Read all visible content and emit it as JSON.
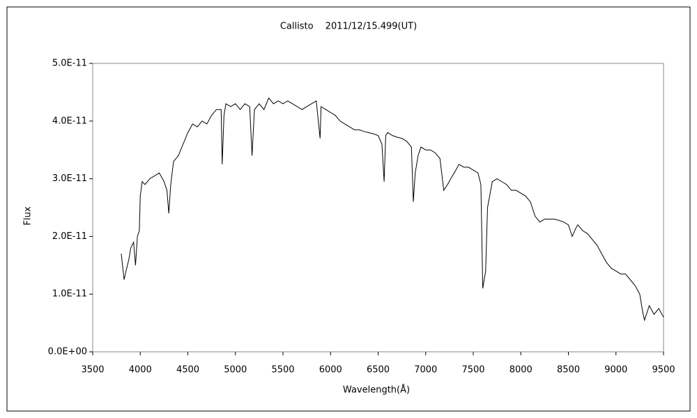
{
  "chart_data": {
    "type": "line",
    "title": "Callisto　 2011/12/15.499(UT)",
    "xlabel": "Wavelength(Å)",
    "ylabel": "Flux",
    "color": "#000000",
    "xlim": [
      3500,
      9500
    ],
    "xticks": [
      3500,
      4000,
      4500,
      5000,
      5500,
      6000,
      6500,
      7000,
      7500,
      8000,
      8500,
      9000,
      9500
    ],
    "ylim": [
      0,
      5e-11
    ],
    "yticks": [
      {
        "value": 0,
        "label": "0.0E+00"
      },
      {
        "value": 1e-11,
        "label": "1.0E-11"
      },
      {
        "value": 2e-11,
        "label": "2.0E-11"
      },
      {
        "value": 3e-11,
        "label": "3.0E-11"
      },
      {
        "value": 4e-11,
        "label": "4.0E-11"
      },
      {
        "value": 5e-11,
        "label": "5.0E-11"
      }
    ],
    "grid": false,
    "x": [
      3800,
      3830,
      3850,
      3880,
      3900,
      3930,
      3950,
      3970,
      3990,
      4000,
      4020,
      4050,
      4100,
      4150,
      4200,
      4250,
      4280,
      4300,
      4320,
      4350,
      4400,
      4450,
      4500,
      4550,
      4600,
      4650,
      4700,
      4750,
      4800,
      4850,
      4861,
      4880,
      4900,
      4950,
      5000,
      5050,
      5100,
      5150,
      5175,
      5200,
      5250,
      5300,
      5350,
      5400,
      5450,
      5500,
      5550,
      5600,
      5650,
      5700,
      5750,
      5800,
      5850,
      5890,
      5900,
      5950,
      6000,
      6050,
      6100,
      6150,
      6200,
      6250,
      6300,
      6350,
      6400,
      6450,
      6500,
      6540,
      6563,
      6580,
      6600,
      6650,
      6700,
      6750,
      6800,
      6850,
      6870,
      6890,
      6920,
      6950,
      7000,
      7050,
      7100,
      7150,
      7190,
      7230,
      7280,
      7300,
      7350,
      7400,
      7450,
      7500,
      7550,
      7580,
      7600,
      7630,
      7650,
      7700,
      7750,
      7800,
      7850,
      7900,
      7950,
      8000,
      8050,
      8100,
      8150,
      8200,
      8250,
      8300,
      8350,
      8400,
      8450,
      8500,
      8540,
      8580,
      8600,
      8650,
      8700,
      8750,
      8800,
      8850,
      8900,
      8950,
      9000,
      9050,
      9100,
      9150,
      9200,
      9250,
      9280,
      9300,
      9350,
      9400,
      9450,
      9500
    ],
    "values": [
      1.7e-11,
      1.25e-11,
      1.4e-11,
      1.6e-11,
      1.8e-11,
      1.9e-11,
      1.5e-11,
      2e-11,
      2.1e-11,
      2.7e-11,
      2.95e-11,
      2.9e-11,
      3e-11,
      3.05e-11,
      3.1e-11,
      2.95e-11,
      2.8e-11,
      2.4e-11,
      2.9e-11,
      3.3e-11,
      3.4e-11,
      3.6e-11,
      3.8e-11,
      3.95e-11,
      3.9e-11,
      4e-11,
      3.95e-11,
      4.1e-11,
      4.2e-11,
      4.2e-11,
      3.25e-11,
      4.1e-11,
      4.3e-11,
      4.25e-11,
      4.3e-11,
      4.2e-11,
      4.3e-11,
      4.25e-11,
      3.4e-11,
      4.2e-11,
      4.3e-11,
      4.2e-11,
      4.4e-11,
      4.3e-11,
      4.35e-11,
      4.3e-11,
      4.35e-11,
      4.3e-11,
      4.25e-11,
      4.2e-11,
      4.25e-11,
      4.3e-11,
      4.35e-11,
      3.7e-11,
      4.25e-11,
      4.2e-11,
      4.15e-11,
      4.1e-11,
      4e-11,
      3.95e-11,
      3.9e-11,
      3.85e-11,
      3.85e-11,
      3.82e-11,
      3.8e-11,
      3.78e-11,
      3.75e-11,
      3.6e-11,
      2.95e-11,
      3.75e-11,
      3.8e-11,
      3.75e-11,
      3.72e-11,
      3.7e-11,
      3.65e-11,
      3.55e-11,
      2.6e-11,
      3.1e-11,
      3.4e-11,
      3.55e-11,
      3.5e-11,
      3.5e-11,
      3.45e-11,
      3.35e-11,
      2.8e-11,
      2.9e-11,
      3.05e-11,
      3.1e-11,
      3.25e-11,
      3.2e-11,
      3.2e-11,
      3.15e-11,
      3.1e-11,
      2.9e-11,
      1.1e-11,
      1.4e-11,
      2.5e-11,
      2.95e-11,
      3e-11,
      2.95e-11,
      2.9e-11,
      2.8e-11,
      2.8e-11,
      2.75e-11,
      2.7e-11,
      2.6e-11,
      2.35e-11,
      2.25e-11,
      2.3e-11,
      2.3e-11,
      2.3e-11,
      2.28e-11,
      2.25e-11,
      2.2e-11,
      2e-11,
      2.15e-11,
      2.2e-11,
      2.1e-11,
      2.05e-11,
      1.95e-11,
      1.85e-11,
      1.7e-11,
      1.55e-11,
      1.45e-11,
      1.4e-11,
      1.35e-11,
      1.35e-11,
      1.25e-11,
      1.15e-11,
      1e-11,
      7e-12,
      5.5e-12,
      8e-12,
      6.5e-12,
      7.5e-12,
      6e-12
    ]
  }
}
